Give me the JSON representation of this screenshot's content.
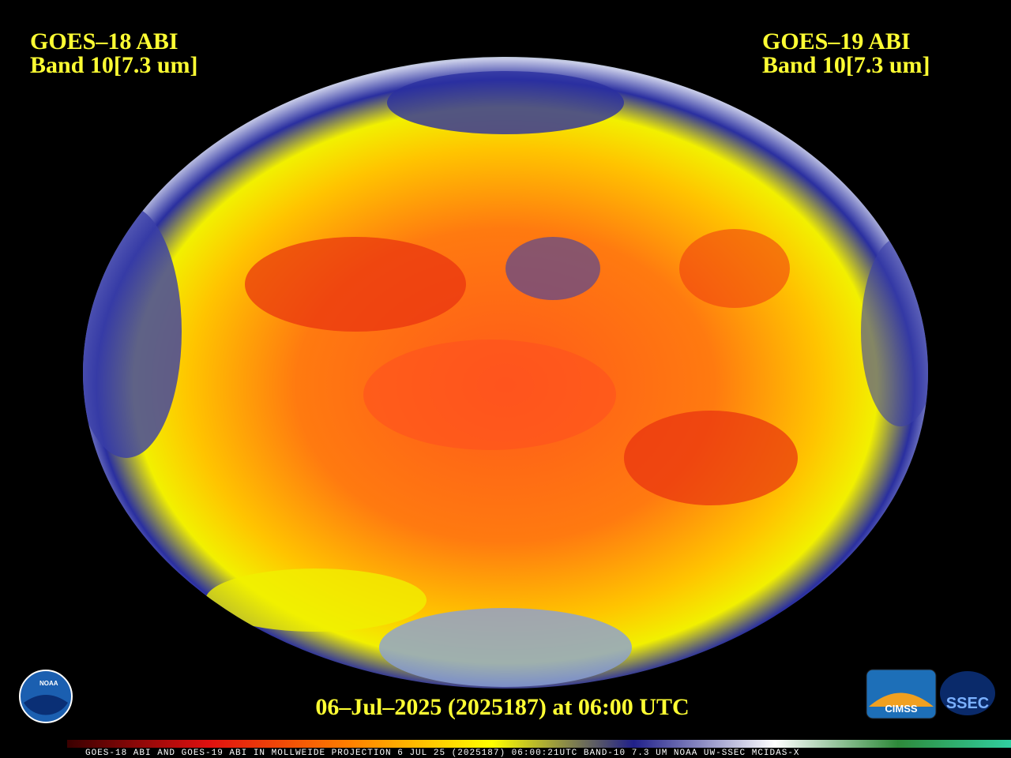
{
  "header": {
    "left": {
      "satellite": "GOES–18 ABI",
      "band": "Band 10[7.3 um]"
    },
    "right": {
      "satellite": "GOES–19 ABI",
      "band": "Band 10[7.3 um]"
    }
  },
  "timestamp": "06–Jul–2025 (2025187) at 06:00 UTC",
  "footer_strip": "GOES-18 ABI AND GOES-19 ABI IN MOLLWEIDE PROJECTION 6 JUL 25 (2025187) 06:00:21UTC BAND-10 7.3 UM NOAA UW-SSEC MCIDAS-X",
  "logos": {
    "noaa": "NOAA",
    "cimss": "CIMSS",
    "ssec": "SSEC"
  }
}
